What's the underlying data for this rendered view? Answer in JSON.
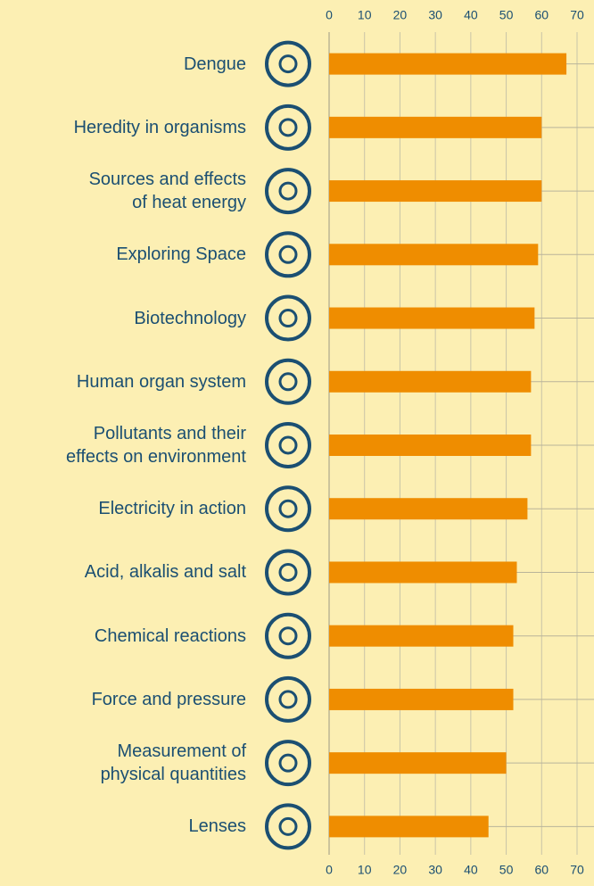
{
  "chart_data": {
    "type": "bar",
    "orientation": "horizontal",
    "categories": [
      "Dengue",
      "Heredity in organisms",
      "Sources and effects\nof heat energy",
      "Exploring Space",
      "Biotechnology",
      "Human organ system",
      "Pollutants and their\neffects on environment",
      "Electricity in action",
      "Acid, alkalis and salt",
      "Chemical reactions",
      "Force and pressure",
      "Measurement of\nphysical quantities",
      "Lenses"
    ],
    "values": [
      67,
      60,
      60,
      59,
      58,
      57,
      57,
      56,
      53,
      52,
      52,
      50,
      45
    ],
    "color": "#ef8d00",
    "xlim": [
      0,
      70
    ],
    "xticks": [
      0,
      10,
      20,
      30,
      40,
      50,
      60,
      70
    ],
    "grid": true
  }
}
